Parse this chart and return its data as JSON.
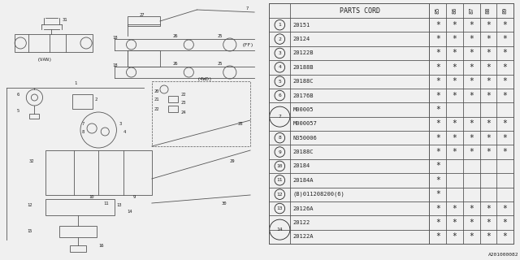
{
  "diagram_code": "A201000082",
  "bg_color": "#f0f0f0",
  "line_color": "#555555",
  "font_color": "#222222",
  "year_cols": [
    "85",
    "86",
    "87",
    "88",
    "89"
  ],
  "rows": [
    {
      "ref": "1",
      "part": "20151",
      "stars": [
        1,
        1,
        1,
        1,
        1
      ],
      "merged": false,
      "skip_ref": false
    },
    {
      "ref": "2",
      "part": "20124",
      "stars": [
        1,
        1,
        1,
        1,
        1
      ],
      "merged": false,
      "skip_ref": false
    },
    {
      "ref": "3",
      "part": "20122B",
      "stars": [
        1,
        1,
        1,
        1,
        1
      ],
      "merged": false,
      "skip_ref": false
    },
    {
      "ref": "4",
      "part": "20188B",
      "stars": [
        1,
        1,
        1,
        1,
        1
      ],
      "merged": false,
      "skip_ref": false
    },
    {
      "ref": "5",
      "part": "20188C",
      "stars": [
        1,
        1,
        1,
        1,
        1
      ],
      "merged": false,
      "skip_ref": false
    },
    {
      "ref": "6",
      "part": "20176B",
      "stars": [
        1,
        1,
        1,
        1,
        1
      ],
      "merged": false,
      "skip_ref": false
    },
    {
      "ref": "7",
      "part": "M00005",
      "stars": [
        1,
        0,
        0,
        0,
        0
      ],
      "merged": true,
      "skip_ref": false
    },
    {
      "ref": "7",
      "part": "M000057",
      "stars": [
        1,
        1,
        1,
        1,
        1
      ],
      "merged": true,
      "skip_ref": true
    },
    {
      "ref": "8",
      "part": "N350006",
      "stars": [
        1,
        1,
        1,
        1,
        1
      ],
      "merged": false,
      "skip_ref": false
    },
    {
      "ref": "9",
      "part": "20188C",
      "stars": [
        1,
        1,
        1,
        1,
        1
      ],
      "merged": false,
      "skip_ref": false
    },
    {
      "ref": "10",
      "part": "20184",
      "stars": [
        1,
        0,
        0,
        0,
        0
      ],
      "merged": false,
      "skip_ref": false
    },
    {
      "ref": "11",
      "part": "20184A",
      "stars": [
        1,
        0,
        0,
        0,
        0
      ],
      "merged": false,
      "skip_ref": false
    },
    {
      "ref": "12",
      "part": "(B)011208200(6)",
      "stars": [
        1,
        0,
        0,
        0,
        0
      ],
      "merged": false,
      "skip_ref": false
    },
    {
      "ref": "13",
      "part": "20126A",
      "stars": [
        1,
        1,
        1,
        1,
        1
      ],
      "merged": false,
      "skip_ref": false
    },
    {
      "ref": "14",
      "part": "20122",
      "stars": [
        1,
        1,
        1,
        1,
        1
      ],
      "merged": true,
      "skip_ref": false
    },
    {
      "ref": "14",
      "part": "20122A",
      "stars": [
        1,
        1,
        1,
        1,
        1
      ],
      "merged": true,
      "skip_ref": true
    }
  ]
}
